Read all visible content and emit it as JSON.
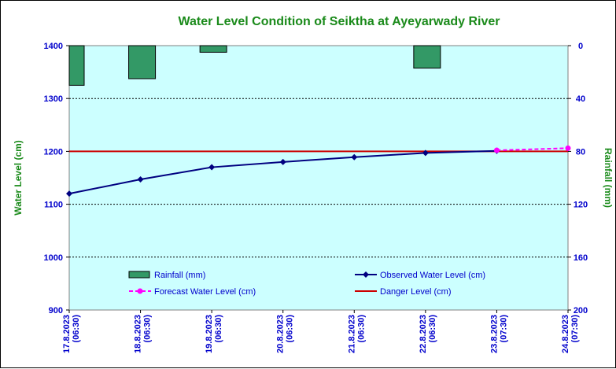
{
  "chart_data": {
    "type": "bar+line",
    "title": "Water Level Condition  of Seiktha at Ayeyarwady  River",
    "ylabel_left": "Water Level (cm)",
    "ylabel_right": "Rainfall (mm)",
    "ylim_left": [
      900,
      1400
    ],
    "yticks_left": [
      "1400",
      "1300",
      "1200",
      "1100",
      "1000",
      "900"
    ],
    "ylim_right": [
      0,
      200
    ],
    "right_axis_inverted": true,
    "yticks_right": [
      "0",
      "40",
      "80",
      "120",
      "160",
      "200"
    ],
    "categories": [
      "17.8.2023\n(06:30)",
      "18.8.2023\n(06:30)",
      "19.8.2023\n(06:30)",
      "20.8.2023\n(06:30)",
      "21.8.2023\n(06:30)",
      "22.8.2023\n(06:30)",
      "23.8.2023\n(07:30)",
      "24.8.2023\n(07:30)"
    ],
    "grid": true,
    "legend_position": "bottom",
    "plot_background": "#ccffff",
    "series": [
      {
        "name": "Rainfall (mm)",
        "kind": "bar",
        "axis": "right",
        "color": "#339966",
        "values": [
          30,
          25,
          5,
          null,
          null,
          17,
          null,
          null
        ]
      },
      {
        "name": "Observed Water Level (cm)",
        "kind": "line",
        "axis": "left",
        "color": "#000080",
        "marker": "diamond",
        "values": [
          1120,
          1147,
          1170,
          1180,
          1189,
          1197,
          1201,
          null
        ]
      },
      {
        "name": "Forecast Water Level (cm)",
        "kind": "line-dashed",
        "axis": "left",
        "color": "#ff00ff",
        "marker": "circle",
        "values": [
          null,
          null,
          null,
          null,
          null,
          null,
          1202,
          1206
        ]
      },
      {
        "name": "Danger Level (cm)",
        "kind": "hline",
        "axis": "left",
        "color": "#cc0000",
        "value": 1200
      }
    ]
  }
}
